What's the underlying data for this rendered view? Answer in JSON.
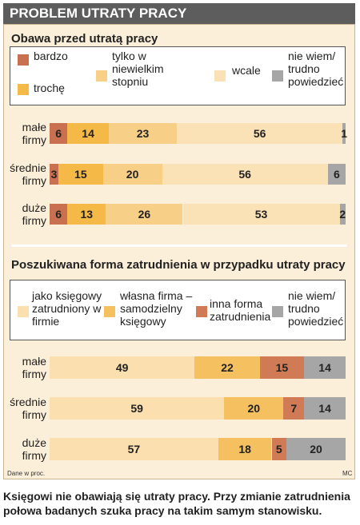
{
  "header": {
    "title": "PROBLEM UTRATY PRACY"
  },
  "chart_data": [
    {
      "type": "bar",
      "orientation": "horizontal",
      "stacked": true,
      "title": "Obawa przed utratą pracy",
      "categories": [
        "małe firmy",
        "średnie firmy",
        "duże firmy"
      ],
      "series": [
        {
          "name": "bardzo",
          "color": "#c8704f",
          "values": [
            6,
            3,
            6
          ]
        },
        {
          "name": "trochę",
          "color": "#f5b948",
          "values": [
            14,
            15,
            13
          ]
        },
        {
          "name": "tylko w niewielkim stopniu",
          "color": "#f8cf86",
          "values": [
            23,
            20,
            26
          ]
        },
        {
          "name": "wcale",
          "color": "#fbe2b6",
          "values": [
            56,
            56,
            53
          ]
        },
        {
          "name": "nie wiem/ trudno powiedzieć",
          "color": "#a6a6a6",
          "values": [
            1,
            6,
            2
          ]
        }
      ]
    },
    {
      "type": "bar",
      "orientation": "horizontal",
      "stacked": true,
      "title": "Poszukiwana forma zatrudnienia w przypadku utraty pracy",
      "categories": [
        "małe firmy",
        "średnie firmy",
        "duże firmy"
      ],
      "series": [
        {
          "name": "jako księgowy zatrudniony w firmie",
          "color": "#fbdfae",
          "values": [
            49,
            59,
            57
          ]
        },
        {
          "name": "własna firma – samodzielny księgowy",
          "color": "#f5c060",
          "values": [
            22,
            20,
            18
          ]
        },
        {
          "name": "inna forma zatrudnienia",
          "color": "#d07a56",
          "values": [
            15,
            7,
            5
          ]
        },
        {
          "name": "nie wiem/ trudno powiedzieć",
          "color": "#a6a6a6",
          "values": [
            14,
            14,
            20
          ]
        }
      ]
    }
  ],
  "note": "Dane w proc.",
  "credit": "MC",
  "caption": "Księgowi nie obawiają się utraty pracy. Przy zmianie zatrudnienia połowa badanych szuka pracy na takim samym stanowisku."
}
